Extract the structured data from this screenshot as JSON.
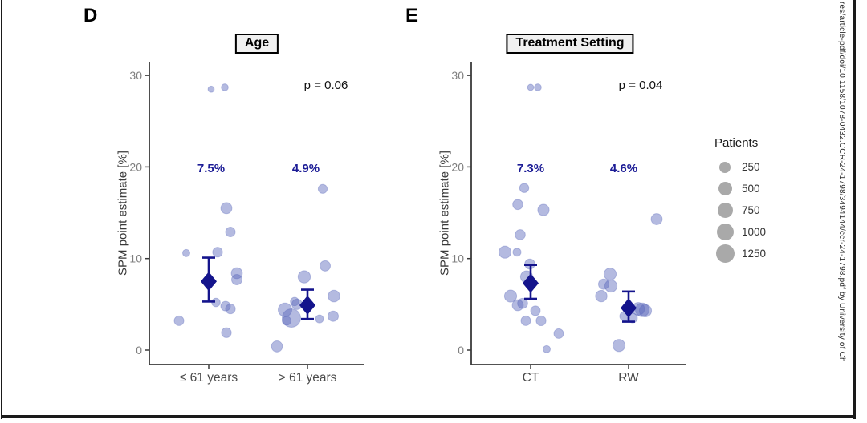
{
  "chart_data": [
    {
      "type": "scatter",
      "id": "D",
      "letter": "D",
      "title": "Age",
      "p_value": "p = 0.06",
      "y_axis_label": "SPM point estimate [%]",
      "ylim": [
        0,
        31
      ],
      "y_ticks": [
        0,
        10,
        20,
        30
      ],
      "legend_position": "right",
      "grid": false,
      "groups": [
        {
          "category": "≤ 61 years",
          "estimate_label": "7.5%",
          "mean": 7.5,
          "ci_low": 5.3,
          "ci_high": 10.1,
          "points": [
            {
              "y": 28.5,
              "dx": 3,
              "n": 15
            },
            {
              "y": 28.7,
              "dx": 20,
              "n": 30
            },
            {
              "y": 15.5,
              "dx": 22,
              "n": 260
            },
            {
              "y": 12.9,
              "dx": 27,
              "n": 160
            },
            {
              "y": 10.6,
              "dx": -28,
              "n": 40
            },
            {
              "y": 10.7,
              "dx": 11,
              "n": 170
            },
            {
              "y": 8.4,
              "dx": 35,
              "n": 260
            },
            {
              "y": 7.7,
              "dx": 35,
              "n": 210
            },
            {
              "y": 5.2,
              "dx": 9,
              "n": 90
            },
            {
              "y": 4.8,
              "dx": 21,
              "n": 160
            },
            {
              "y": 4.5,
              "dx": 27,
              "n": 170
            },
            {
              "y": 3.2,
              "dx": -37,
              "n": 160
            },
            {
              "y": 1.9,
              "dx": 22,
              "n": 170
            }
          ]
        },
        {
          "category": "> 61 years",
          "estimate_label": "4.9%",
          "mean": 4.9,
          "ci_low": 3.4,
          "ci_high": 6.6,
          "points": [
            {
              "y": 17.6,
              "dx": 19,
              "n": 120
            },
            {
              "y": 9.2,
              "dx": 22,
              "n": 210
            },
            {
              "y": 8.0,
              "dx": -4,
              "n": 380
            },
            {
              "y": 5.9,
              "dx": 33,
              "n": 320
            },
            {
              "y": 5.3,
              "dx": -16,
              "n": 90
            },
            {
              "y": 5.0,
              "dx": -13,
              "n": 210
            },
            {
              "y": 4.4,
              "dx": -28,
              "n": 520
            },
            {
              "y": 3.5,
              "dx": -20,
              "n": 1250
            },
            {
              "y": 3.2,
              "dx": -26,
              "n": 110
            },
            {
              "y": 3.7,
              "dx": 32,
              "n": 210
            },
            {
              "y": 3.4,
              "dx": 15,
              "n": 70
            },
            {
              "y": 0.4,
              "dx": -38,
              "n": 260
            }
          ]
        }
      ]
    },
    {
      "type": "scatter",
      "id": "E",
      "letter": "E",
      "title": "Treatment Setting",
      "p_value": "p = 0.04",
      "y_axis_label": "SPM point estimate [%]",
      "ylim": [
        0,
        31
      ],
      "y_ticks": [
        0,
        10,
        20,
        30
      ],
      "legend_position": "right",
      "grid": false,
      "groups": [
        {
          "category": "CT",
          "estimate_label": "7.3%",
          "mean": 7.3,
          "ci_low": 5.6,
          "ci_high": 9.3,
          "points": [
            {
              "y": 28.7,
              "dx": 0,
              "n": 15
            },
            {
              "y": 28.7,
              "dx": 9,
              "n": 30
            },
            {
              "y": 17.7,
              "dx": -8,
              "n": 130
            },
            {
              "y": 15.9,
              "dx": -16,
              "n": 190
            },
            {
              "y": 15.3,
              "dx": 16,
              "n": 290
            },
            {
              "y": 12.6,
              "dx": -13,
              "n": 190
            },
            {
              "y": 10.7,
              "dx": -32,
              "n": 360
            },
            {
              "y": 10.7,
              "dx": -17,
              "n": 70
            },
            {
              "y": 9.4,
              "dx": -1,
              "n": 190
            },
            {
              "y": 8.0,
              "dx": -5,
              "n": 360
            },
            {
              "y": 5.9,
              "dx": -25,
              "n": 360
            },
            {
              "y": 4.9,
              "dx": -16,
              "n": 260
            },
            {
              "y": 5.1,
              "dx": -10,
              "n": 190
            },
            {
              "y": 4.3,
              "dx": 6,
              "n": 160
            },
            {
              "y": 3.2,
              "dx": -6,
              "n": 160
            },
            {
              "y": 3.2,
              "dx": 13,
              "n": 170
            },
            {
              "y": 1.8,
              "dx": 35,
              "n": 160
            },
            {
              "y": 0.1,
              "dx": 20,
              "n": 40
            }
          ]
        },
        {
          "category": "RW",
          "estimate_label": "4.6%",
          "mean": 4.6,
          "ci_low": 3.1,
          "ci_high": 6.4,
          "points": [
            {
              "y": 14.3,
              "dx": 35,
              "n": 260
            },
            {
              "y": 8.3,
              "dx": -23,
              "n": 360
            },
            {
              "y": 7.2,
              "dx": -31,
              "n": 210
            },
            {
              "y": 7.0,
              "dx": -22,
              "n": 360
            },
            {
              "y": 5.9,
              "dx": -34,
              "n": 310
            },
            {
              "y": 4.5,
              "dx": 12,
              "n": 420
            },
            {
              "y": 4.4,
              "dx": 17,
              "n": 520
            },
            {
              "y": 4.3,
              "dx": 21,
              "n": 360
            },
            {
              "y": 3.7,
              "dx": -5,
              "n": 160
            },
            {
              "y": 3.5,
              "dx": 5,
              "n": 160
            },
            {
              "y": 0.5,
              "dx": -12,
              "n": 360
            }
          ]
        }
      ]
    }
  ],
  "legend": {
    "title": "Patients",
    "items": [
      {
        "label": "250"
      },
      {
        "label": "500"
      },
      {
        "label": "750"
      },
      {
        "label": "1000"
      },
      {
        "label": "1250"
      }
    ]
  },
  "sidebar_text": "res/article-pdf/doi/10.1158/1078-0432.CCR-24-1798/3494144/ccr-24-1798.pdf by University of Ch",
  "colors": {
    "point_fill": "#5866bb",
    "summary_navy": "#14148c",
    "estimate_label_blue": "#1c1c96",
    "legend_gray": "#a9a9a9",
    "axis": "#3a3a3a",
    "tick_text": "#7f7f7f"
  }
}
